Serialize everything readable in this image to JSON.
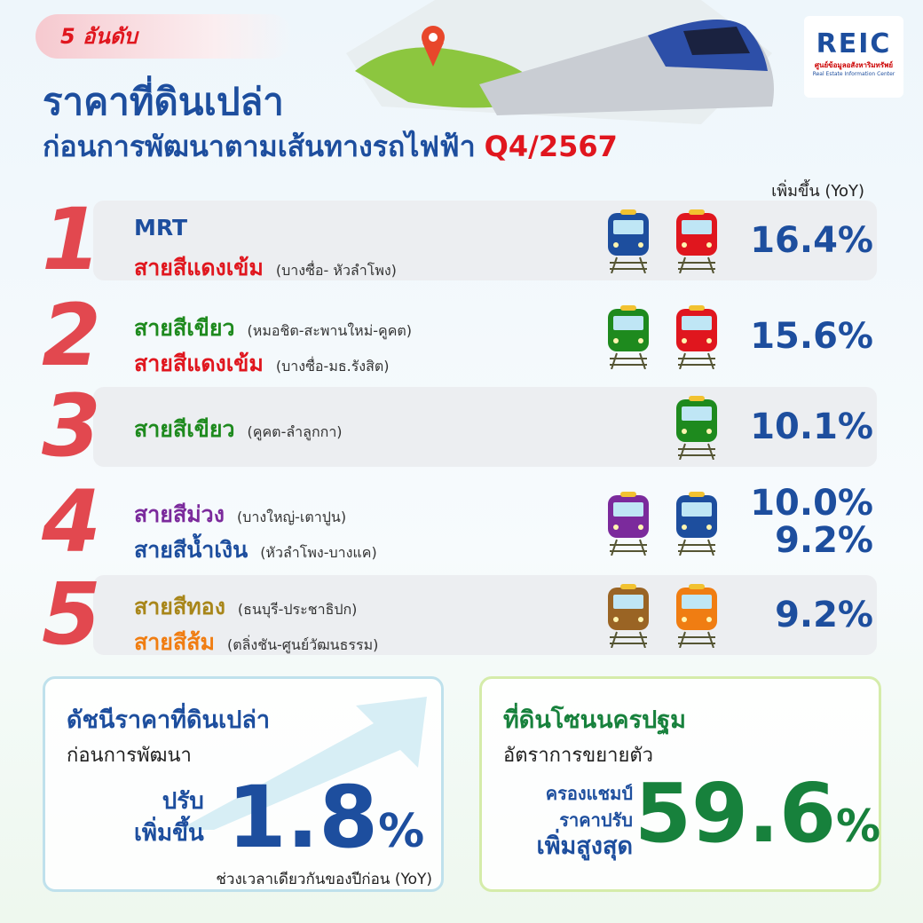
{
  "header": {
    "badge": "5 อันดับ",
    "title": "ราคาที่ดินเปล่า",
    "subtitle": "ก่อนการพัฒนาตามเส้นทางรถไฟฟ้า",
    "period": "Q4/2567",
    "logo": "REIC",
    "logo_sub": "ศูนย์ข้อมูลอสังหาริมทรัพย์",
    "logo_en": "Real Estate Information Center"
  },
  "ranking": {
    "column_header": "เพิ่มขึ้น (YoY)",
    "items": [
      {
        "rank": "1",
        "lines": [
          {
            "name": "MRT",
            "color": "#1d4e9e"
          },
          {
            "name": "สายสีแดงเข้ม",
            "route": "(บางซื่อ- หัวลำโพง)",
            "color": "#e0161e"
          }
        ],
        "trains": [
          "#1d4e9e",
          "#e0161e"
        ],
        "changes": [
          "16.4%"
        ]
      },
      {
        "rank": "2",
        "lines": [
          {
            "name": "สายสีเขียว",
            "route": "(หมอชิต-สะพานใหม่-คูคต)",
            "color": "#1e8a1e"
          },
          {
            "name": "สายสีแดงเข้ม",
            "route": "(บางซื่อ-มธ.รังสิต)",
            "color": "#e0161e"
          }
        ],
        "trains": [
          "#1e8a1e",
          "#e0161e"
        ],
        "changes": [
          "15.6%"
        ]
      },
      {
        "rank": "3",
        "lines": [
          {
            "name": "สายสีเขียว",
            "route": "(คูคต-ลำลูกกา)",
            "color": "#1e8a1e"
          }
        ],
        "trains": [
          "#1e8a1e"
        ],
        "changes": [
          "10.1%"
        ]
      },
      {
        "rank": "4",
        "lines": [
          {
            "name": "สายสีม่วง",
            "route": "(บางใหญ่-เตาปูน)",
            "color": "#7b2a9c"
          },
          {
            "name": "สายสีน้ำเงิน",
            "route": "(หัวลำโพง-บางแค)",
            "color": "#1d4e9e"
          }
        ],
        "trains": [
          "#7b2a9c",
          "#1d4e9e"
        ],
        "changes": [
          "10.0%",
          "9.2%"
        ]
      },
      {
        "rank": "5",
        "lines": [
          {
            "name": "สายสีทอง",
            "route": "(ธนบุรี-ประชาธิปก)",
            "color": "#a8861a"
          },
          {
            "name": "สายสีส้ม",
            "route": "(ตลิ่งชัน-ศูนย์วัฒนธรรม)",
            "color": "#f07d12"
          }
        ],
        "trains": [
          "#9a6424",
          "#f07d12"
        ],
        "changes": [
          "9.2%"
        ]
      }
    ]
  },
  "index_card": {
    "title": "ดัชนีราคาที่ดินเปล่า",
    "subtitle": "ก่อนการพัฒนา",
    "label": [
      "ปรับ",
      "เพิ่มขึ้น"
    ],
    "value": "1.8",
    "unit": "%",
    "note": "ช่วงเวลาเดียวกันของปีก่อน (YoY)"
  },
  "zone_card": {
    "title": "ที่ดินโซนนครปฐม",
    "subtitle": "อัตราการขยายตัว",
    "label": [
      "ครองแชมป์",
      "ราคาปรับ",
      "เพิ่มสูงสุด"
    ],
    "value": "59.6",
    "unit": "%"
  }
}
